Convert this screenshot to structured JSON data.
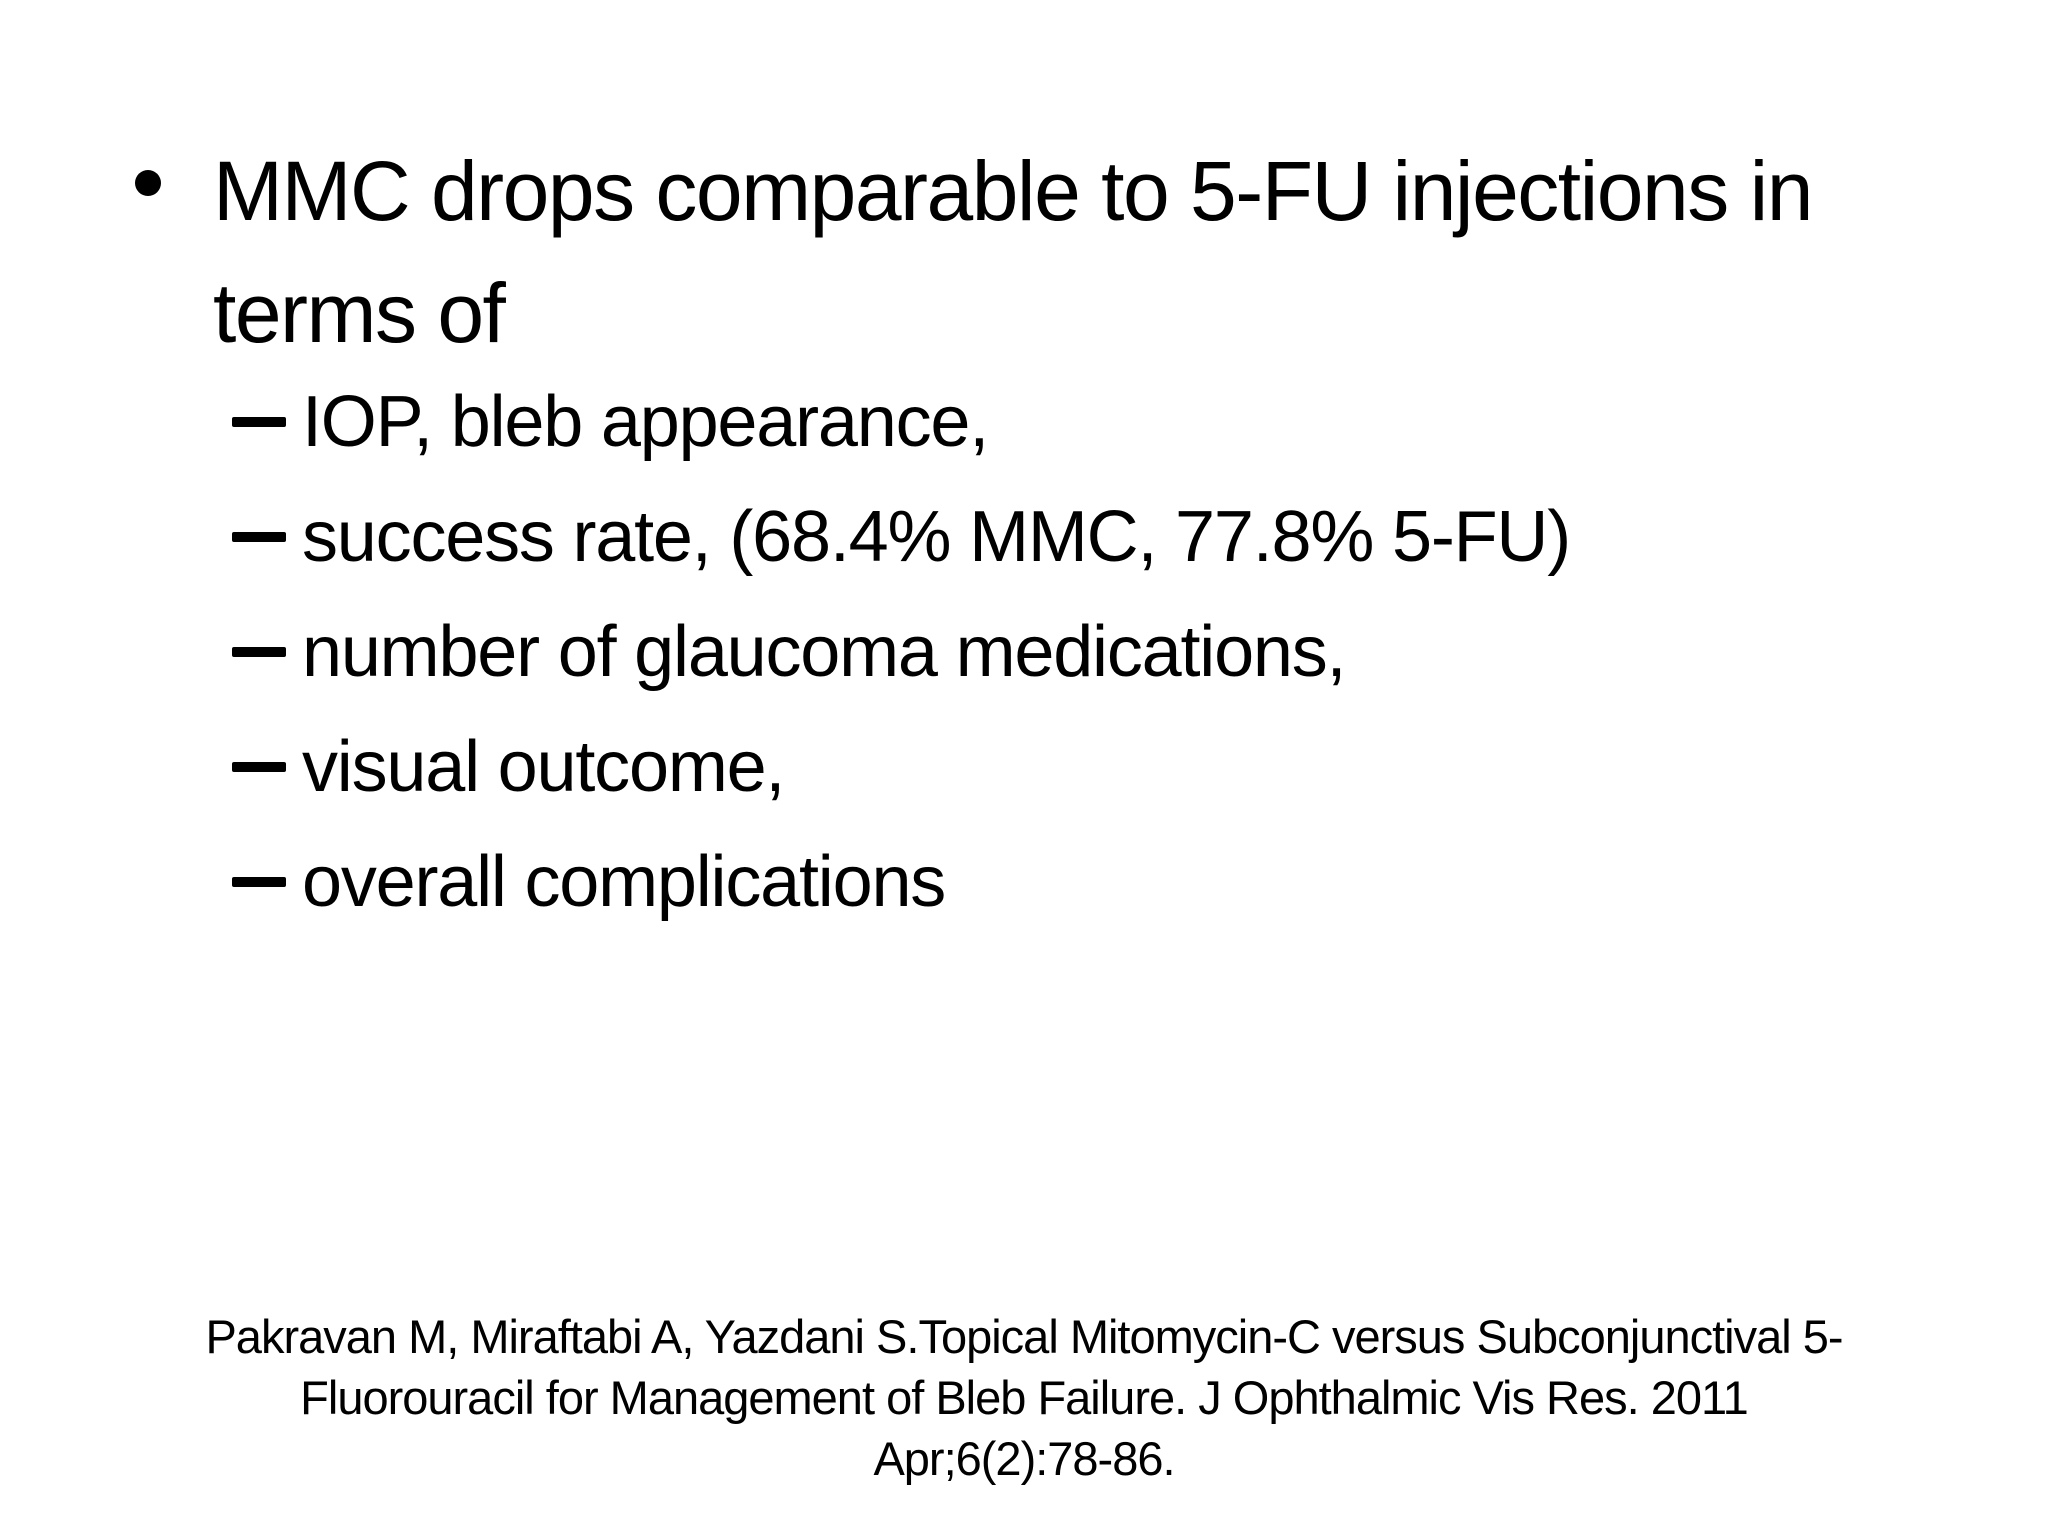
{
  "slide": {
    "background_color": "#ffffff",
    "text_color": "#000000",
    "bullet": {
      "marker": "•",
      "lines": [
        "MMC drops comparable to 5-FU injections in",
        "terms of"
      ]
    },
    "sub_bullets": {
      "marker": "–",
      "items": [
        "IOP, bleb appearance,",
        "success rate, (68.4% MMC, 77.8% 5-FU)",
        "number of glaucoma medications,",
        "visual outcome,",
        "overall complications"
      ]
    },
    "citation": {
      "lines": [
        "Pakravan M, Miraftabi A, Yazdani S.Topical Mitomycin-C versus Subconjunctival 5-",
        "Fluorouracil for Management of Bleb Failure. J Ophthalmic Vis Res. 2011",
        "Apr;6(2):78-86."
      ]
    }
  }
}
